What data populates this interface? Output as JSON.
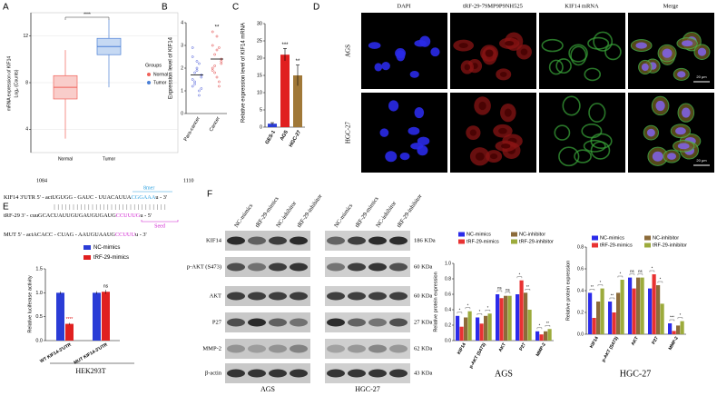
{
  "a": {
    "label": "A",
    "significance": "****",
    "ylabel": "mRNA expression of KIF14",
    "ylabel_unit": "Log₂ (Counts)",
    "legend_title": "Groups",
    "categories": [
      "Normal",
      "Tumor"
    ],
    "colors": [
      "#f0625a",
      "#4a7fd6"
    ],
    "fills": [
      "#f9cdca",
      "#c6d9f3"
    ],
    "ylim": [
      2,
      14
    ],
    "yticks": [
      4,
      8,
      12
    ],
    "boxes": [
      {
        "whisker_low": 3.2,
        "q1": 6.6,
        "median": 7.6,
        "q3": 8.6,
        "whisker_high": 10.8
      },
      {
        "whisker_low": 7.6,
        "q1": 10.4,
        "median": 11.1,
        "q3": 11.8,
        "whisker_high": 13.4
      }
    ]
  },
  "b": {
    "label": "B",
    "ylabel": "Expression level of KIF14",
    "categories": [
      "Para-cancer",
      "Cancer"
    ],
    "significance": "**",
    "colors": [
      "#4a5ad8",
      "#e04040"
    ],
    "ylim": [
      0,
      4
    ],
    "yticks": [
      0,
      1,
      2,
      3,
      4
    ],
    "points": [
      [
        1.2,
        1.8,
        2.3,
        1.0,
        1.6,
        2.9,
        1.4,
        2.0,
        0.8,
        1.7,
        2.5,
        1.3,
        1.9,
        2.2,
        1.1,
        1.5
      ],
      [
        2.0,
        2.6,
        3.4,
        1.4,
        2.2,
        3.0,
        1.8,
        2.8,
        1.2,
        2.4,
        3.6,
        2.1,
        1.6,
        2.9,
        2.3,
        1.9
      ]
    ],
    "means": [
      1.7,
      2.4
    ]
  },
  "c": {
    "label": "C",
    "type": "bar",
    "ylabel": "Relative expression level of KIF14 mRNA",
    "categories": [
      "GES-1",
      "AGS",
      "HGC-27"
    ],
    "values": [
      1,
      21,
      15
    ],
    "errors": [
      0.3,
      1.8,
      3.0
    ],
    "colors": [
      "#2a3cd6",
      "#e02020",
      "#a07838"
    ],
    "significance": [
      null,
      "***",
      "**"
    ],
    "ylim": [
      0,
      30
    ],
    "yticks": [
      0,
      5,
      10,
      15,
      20,
      25,
      30
    ]
  },
  "d": {
    "label": "D",
    "columns": [
      "DAPI",
      "tRF-29-79MP9P9NH525",
      "KIF14 mRNA",
      "Merge"
    ],
    "rows": [
      "AGS",
      "HGC-27"
    ],
    "scale_bar": "20 μm"
  },
  "e": {
    "label": "E",
    "positions": [
      1084,
      1110
    ],
    "site": "8mer",
    "seed": "Seed",
    "sequences": [
      {
        "name": "KIF14 3'UTR 5'",
        "parts": [
          {
            "text": " - actUGUGG - GAUC - UUACAUUA",
            "color": "#000000"
          },
          {
            "text": "CGGAAA",
            "color": "#2aa0e0"
          },
          {
            "text": "u - 3'",
            "color": "#000000"
          }
        ]
      },
      {
        "name": "tRF-29 3'",
        "parts": [
          {
            "text": " - cuuGCACUAUUGUGAUGUGAUG",
            "color": "#000000"
          },
          {
            "text": "CCUUUG",
            "color": "#d020d0"
          },
          {
            "text": "u - 5'",
            "color": "#000000"
          }
        ]
      },
      {
        "name": "MUT 5'",
        "parts": [
          {
            "text": " - actACACC - CUAG - AAUGUAAUG",
            "color": "#000000"
          },
          {
            "text": "CCUUU",
            "color": "#d020d0"
          },
          {
            "text": "u - 3'",
            "color": "#000000"
          }
        ]
      }
    ],
    "chart": {
      "type": "bar",
      "ylabel": "Relative luciferase activity",
      "categories": [
        "WT KIF14-3'UTR",
        "MUT KIF14-3'UTR"
      ],
      "series": [
        {
          "name": "NC-mimics",
          "color": "#2a3cd6",
          "values": [
            1.0,
            1.0
          ],
          "errors": [
            0.03,
            0.03
          ]
        },
        {
          "name": "tRF-29-mimics",
          "color": "#e02020",
          "values": [
            0.35,
            1.02
          ],
          "errors": [
            0.02,
            0.04
          ]
        }
      ],
      "annotations": [
        "****",
        "ns"
      ],
      "ylim": [
        0,
        1.5
      ],
      "yticks": [
        {
          "value": 0,
          "label": "0.0"
        },
        {
          "value": 0.5,
          "label": "0.5"
        },
        {
          "value": 1,
          "label": "1.0"
        },
        {
          "value": 1.5,
          "label": "1.5"
        }
      ]
    },
    "cell_line": "HEK293T"
  },
  "f": {
    "label": "F",
    "proteins": [
      "KIF14",
      "p-AKT (S473)",
      "AKT",
      "P27",
      "MMP-2",
      "β-actin"
    ],
    "lanes": [
      "NC-mimics",
      "tRF-29-mimics",
      "NC-inhibitor",
      "tRF-29-inhibitor"
    ],
    "sizes": [
      "186 KDa",
      "60 KDa",
      "60 KDa",
      "27 KDa",
      "62 KDa",
      "43 KDa"
    ],
    "blots": [
      "AGS",
      "HGC-27"
    ],
    "charts": [
      {
        "type": "bar",
        "title": "AGS",
        "ylabel": "Relative protein expression",
        "categories": [
          "KIF14",
          "p-AKT (S473)",
          "AKT",
          "P27",
          "MMP-2"
        ],
        "series": [
          {
            "name": "NC-mimics",
            "color": "#2b2bea",
            "values": [
              0.32,
              0.3,
              0.6,
              0.6,
              0.12
            ]
          },
          {
            "name": "tRF-29-mimics",
            "color": "#e83232",
            "values": [
              0.18,
              0.22,
              0.55,
              0.78,
              0.08
            ]
          },
          {
            "name": "NC-inhibitor",
            "color": "#8c6b3a",
            "values": [
              0.3,
              0.32,
              0.58,
              0.62,
              0.12
            ]
          },
          {
            "name": "tRF-29-inhibitor",
            "color": "#9cab3c",
            "values": [
              0.38,
              0.35,
              0.58,
              0.4,
              0.15
            ]
          }
        ],
        "annotations": [
          [
            "*",
            "*"
          ],
          [
            "*",
            "*"
          ],
          [
            "ns",
            "ns"
          ],
          [
            "*",
            "**"
          ],
          [
            "*",
            "**"
          ]
        ],
        "ylim": [
          0,
          1
        ],
        "yticks": [
          {
            "value": 0,
            "label": "0.0"
          },
          {
            "value": 0.2,
            "label": "0.2"
          },
          {
            "value": 0.4,
            "label": "0.4"
          },
          {
            "value": 0.6,
            "label": "0.6"
          },
          {
            "value": 0.8,
            "label": "0.8"
          },
          {
            "value": 1,
            "label": "1.0"
          }
        ]
      },
      {
        "type": "bar",
        "title": "HGC-27",
        "ylabel": "Relative protein expression",
        "categories": [
          "KIF14",
          "p-AKT (S473)",
          "AKT",
          "P27",
          "MMP-2"
        ],
        "series": [
          {
            "name": "NC-mimics",
            "color": "#2b2bea",
            "values": [
              0.38,
              0.3,
              0.52,
              0.42,
              0.1
            ]
          },
          {
            "name": "tRF-29-mimics",
            "color": "#e83232",
            "values": [
              0.15,
              0.2,
              0.42,
              0.55,
              0.03
            ]
          },
          {
            "name": "NC-inhibitor",
            "color": "#8c6b3a",
            "values": [
              0.3,
              0.38,
              0.52,
              0.45,
              0.08
            ]
          },
          {
            "name": "tRF-29-inhibitor",
            "color": "#9cab3c",
            "values": [
              0.42,
              0.5,
              0.52,
              0.28,
              0.12
            ]
          }
        ],
        "annotations": [
          [
            "**",
            "*"
          ],
          [
            "**",
            "*"
          ],
          [
            "ns",
            "ns"
          ],
          [
            "*",
            "*"
          ],
          [
            "***",
            "*"
          ]
        ],
        "ylim": [
          0,
          0.8
        ],
        "yticks": [
          {
            "value": 0,
            "label": "0.0"
          },
          {
            "value": 0.2,
            "label": "0.2"
          },
          {
            "value": 0.4,
            "label": "0.4"
          },
          {
            "value": 0.6,
            "label": "0.6"
          },
          {
            "value": 0.8,
            "label": "0.8"
          }
        ]
      }
    ]
  }
}
